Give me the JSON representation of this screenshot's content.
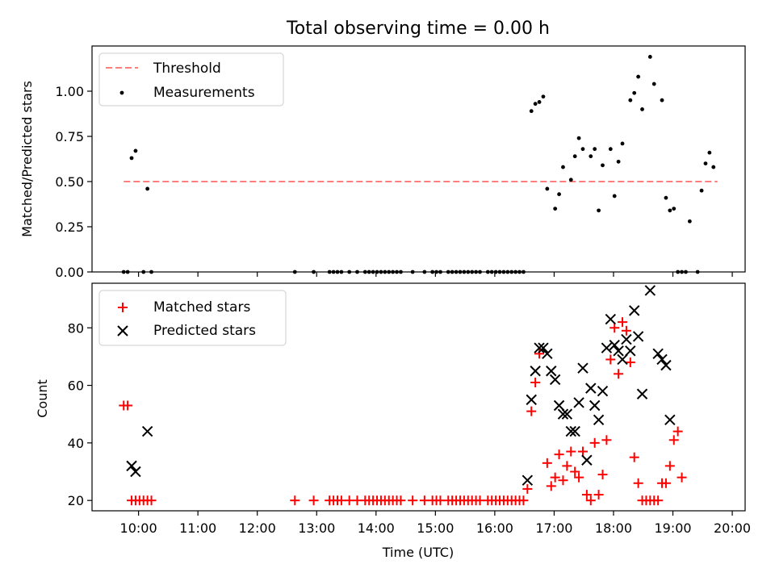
{
  "chart_data": [
    {
      "type": "scatter",
      "title": "Total observing time = 0.00 h",
      "xlabel": "",
      "ylabel": "Matched/Predicted stars",
      "ylim": [
        0,
        1.25
      ],
      "xlim": [
        "09:13",
        "20:13"
      ],
      "yticks": [
        {
          "v": 0,
          "label": "0.00"
        },
        {
          "v": 0.25,
          "label": "0.25"
        },
        {
          "v": 0.5,
          "label": "0.50"
        },
        {
          "v": 0.75,
          "label": "0.75"
        },
        {
          "v": 1.0,
          "label": "1.00"
        }
      ],
      "legend_position": "top-left",
      "threshold": {
        "name": "Threshold",
        "value": 0.5,
        "x_range": [
          "09:45",
          "19:45"
        ],
        "color": "#ff7f7f",
        "style": "dashed"
      },
      "series": [
        {
          "name": "Measurements",
          "marker": "dot",
          "color": "#000000",
          "points": [
            [
              "09:45",
              0
            ],
            [
              "09:49",
              0
            ],
            [
              "09:53",
              0.63
            ],
            [
              "09:57",
              0.67
            ],
            [
              "10:05",
              0
            ],
            [
              "10:09",
              0.46
            ],
            [
              "10:13",
              0
            ],
            [
              "12:38",
              0
            ],
            [
              "12:57",
              0
            ],
            [
              "13:13",
              0
            ],
            [
              "13:17",
              0
            ],
            [
              "13:21",
              0
            ],
            [
              "13:25",
              0
            ],
            [
              "13:33",
              0
            ],
            [
              "13:41",
              0
            ],
            [
              "13:49",
              0
            ],
            [
              "13:53",
              0
            ],
            [
              "13:57",
              0
            ],
            [
              "14:01",
              0
            ],
            [
              "14:05",
              0
            ],
            [
              "14:09",
              0
            ],
            [
              "14:13",
              0
            ],
            [
              "14:17",
              0
            ],
            [
              "14:21",
              0
            ],
            [
              "14:25",
              0
            ],
            [
              "14:37",
              0
            ],
            [
              "14:49",
              0
            ],
            [
              "14:57",
              0
            ],
            [
              "15:01",
              0
            ],
            [
              "15:05",
              0
            ],
            [
              "15:13",
              0
            ],
            [
              "15:17",
              0
            ],
            [
              "15:21",
              0
            ],
            [
              "15:25",
              0
            ],
            [
              "15:29",
              0
            ],
            [
              "15:33",
              0
            ],
            [
              "15:37",
              0
            ],
            [
              "15:41",
              0
            ],
            [
              "15:45",
              0
            ],
            [
              "15:53",
              0
            ],
            [
              "15:57",
              0
            ],
            [
              "16:01",
              0
            ],
            [
              "16:05",
              0
            ],
            [
              "16:09",
              0
            ],
            [
              "16:13",
              0
            ],
            [
              "16:17",
              0
            ],
            [
              "16:21",
              0
            ],
            [
              "16:25",
              0
            ],
            [
              "16:29",
              0
            ],
            [
              "16:37",
              0.89
            ],
            [
              "16:41",
              0.93
            ],
            [
              "16:45",
              0.94
            ],
            [
              "16:49",
              0.97
            ],
            [
              "16:53",
              0.46
            ],
            [
              "17:01",
              0.35
            ],
            [
              "17:05",
              0.43
            ],
            [
              "17:09",
              0.58
            ],
            [
              "17:17",
              0.51
            ],
            [
              "17:21",
              0.64
            ],
            [
              "17:25",
              0.74
            ],
            [
              "17:29",
              0.68
            ],
            [
              "17:37",
              0.64
            ],
            [
              "17:41",
              0.68
            ],
            [
              "17:45",
              0.34
            ],
            [
              "17:49",
              0.59
            ],
            [
              "17:57",
              0.68
            ],
            [
              "18:01",
              0.42
            ],
            [
              "18:05",
              0.61
            ],
            [
              "18:09",
              0.71
            ],
            [
              "18:17",
              0.95
            ],
            [
              "18:21",
              0.99
            ],
            [
              "18:25",
              1.08
            ],
            [
              "18:29",
              0.9
            ],
            [
              "18:37",
              1.19
            ],
            [
              "18:41",
              1.04
            ],
            [
              "18:49",
              0.95
            ],
            [
              "18:53",
              0.41
            ],
            [
              "18:57",
              0.34
            ],
            [
              "19:01",
              0.35
            ],
            [
              "19:05",
              0
            ],
            [
              "19:09",
              0
            ],
            [
              "19:13",
              0
            ],
            [
              "19:17",
              0.28
            ],
            [
              "19:25",
              0
            ],
            [
              "19:29",
              0.45
            ],
            [
              "19:33",
              0.6
            ],
            [
              "19:37",
              0.66
            ],
            [
              "19:41",
              0.58
            ]
          ]
        }
      ]
    },
    {
      "type": "scatter",
      "title": "",
      "xlabel": "Time (UTC)",
      "ylabel": "Count",
      "ylim": [
        16.4,
        95.5
      ],
      "xlim": [
        "09:13",
        "20:13"
      ],
      "xticks": [
        "10:00",
        "11:00",
        "12:00",
        "13:00",
        "14:00",
        "15:00",
        "16:00",
        "17:00",
        "18:00",
        "19:00",
        "20:00"
      ],
      "yticks": [
        {
          "v": 20,
          "label": "20"
        },
        {
          "v": 40,
          "label": "40"
        },
        {
          "v": 60,
          "label": "60"
        },
        {
          "v": 80,
          "label": "80"
        }
      ],
      "legend_position": "top-left",
      "series": [
        {
          "name": "Matched stars",
          "marker": "plus",
          "color": "#ff0000",
          "points": [
            [
              "09:45",
              53
            ],
            [
              "09:49",
              53
            ],
            [
              "09:53",
              20
            ],
            [
              "09:57",
              20
            ],
            [
              "10:01",
              20
            ],
            [
              "10:05",
              20
            ],
            [
              "10:09",
              20
            ],
            [
              "10:13",
              20
            ],
            [
              "12:38",
              20
            ],
            [
              "12:57",
              20
            ],
            [
              "13:13",
              20
            ],
            [
              "13:17",
              20
            ],
            [
              "13:21",
              20
            ],
            [
              "13:25",
              20
            ],
            [
              "13:33",
              20
            ],
            [
              "13:41",
              20
            ],
            [
              "13:49",
              20
            ],
            [
              "13:53",
              20
            ],
            [
              "13:57",
              20
            ],
            [
              "14:01",
              20
            ],
            [
              "14:05",
              20
            ],
            [
              "14:09",
              20
            ],
            [
              "14:13",
              20
            ],
            [
              "14:17",
              20
            ],
            [
              "14:21",
              20
            ],
            [
              "14:25",
              20
            ],
            [
              "14:37",
              20
            ],
            [
              "14:49",
              20
            ],
            [
              "14:57",
              20
            ],
            [
              "15:01",
              20
            ],
            [
              "15:05",
              20
            ],
            [
              "15:13",
              20
            ],
            [
              "15:17",
              20
            ],
            [
              "15:21",
              20
            ],
            [
              "15:25",
              20
            ],
            [
              "15:29",
              20
            ],
            [
              "15:33",
              20
            ],
            [
              "15:37",
              20
            ],
            [
              "15:41",
              20
            ],
            [
              "15:45",
              20
            ],
            [
              "15:53",
              20
            ],
            [
              "15:57",
              20
            ],
            [
              "16:01",
              20
            ],
            [
              "16:05",
              20
            ],
            [
              "16:09",
              20
            ],
            [
              "16:13",
              20
            ],
            [
              "16:17",
              20
            ],
            [
              "16:21",
              20
            ],
            [
              "16:25",
              20
            ],
            [
              "16:29",
              20
            ],
            [
              "16:33",
              24
            ],
            [
              "16:37",
              51
            ],
            [
              "16:41",
              61
            ],
            [
              "16:45",
              71
            ],
            [
              "16:53",
              33
            ],
            [
              "16:57",
              25
            ],
            [
              "17:01",
              28
            ],
            [
              "17:05",
              36
            ],
            [
              "17:09",
              27
            ],
            [
              "17:13",
              32
            ],
            [
              "17:17",
              37
            ],
            [
              "17:21",
              30
            ],
            [
              "17:25",
              28
            ],
            [
              "17:29",
              37
            ],
            [
              "17:33",
              22
            ],
            [
              "17:37",
              20
            ],
            [
              "17:41",
              40
            ],
            [
              "17:45",
              22
            ],
            [
              "17:49",
              29
            ],
            [
              "17:53",
              41
            ],
            [
              "17:57",
              69
            ],
            [
              "18:01",
              80
            ],
            [
              "18:05",
              64
            ],
            [
              "18:09",
              82
            ],
            [
              "18:13",
              79
            ],
            [
              "18:17",
              68
            ],
            [
              "18:21",
              35
            ],
            [
              "18:25",
              26
            ],
            [
              "18:29",
              20
            ],
            [
              "18:33",
              20
            ],
            [
              "18:37",
              20
            ],
            [
              "18:41",
              20
            ],
            [
              "18:45",
              20
            ],
            [
              "18:49",
              26
            ],
            [
              "18:53",
              26
            ],
            [
              "18:57",
              32
            ],
            [
              "19:01",
              41
            ],
            [
              "19:05",
              44
            ],
            [
              "19:09",
              28
            ]
          ]
        },
        {
          "name": "Predicted stars",
          "marker": "x",
          "color": "#000000",
          "points": [
            [
              "09:53",
              32
            ],
            [
              "09:57",
              30
            ],
            [
              "10:09",
              44
            ],
            [
              "16:33",
              27
            ],
            [
              "16:37",
              55
            ],
            [
              "16:41",
              65
            ],
            [
              "16:45",
              73
            ],
            [
              "16:49",
              73
            ],
            [
              "16:53",
              71
            ],
            [
              "16:57",
              65
            ],
            [
              "17:01",
              62
            ],
            [
              "17:05",
              53
            ],
            [
              "17:09",
              50
            ],
            [
              "17:13",
              50
            ],
            [
              "17:17",
              44
            ],
            [
              "17:21",
              44
            ],
            [
              "17:25",
              54
            ],
            [
              "17:29",
              66
            ],
            [
              "17:33",
              34
            ],
            [
              "17:37",
              59
            ],
            [
              "17:41",
              53
            ],
            [
              "17:45",
              48
            ],
            [
              "17:49",
              58
            ],
            [
              "17:53",
              73
            ],
            [
              "17:57",
              83
            ],
            [
              "18:01",
              74
            ],
            [
              "18:05",
              72
            ],
            [
              "18:09",
              69
            ],
            [
              "18:13",
              76
            ],
            [
              "18:17",
              72
            ],
            [
              "18:21",
              86
            ],
            [
              "18:25",
              77
            ],
            [
              "18:29",
              57
            ],
            [
              "18:37",
              93
            ],
            [
              "18:45",
              71
            ],
            [
              "18:49",
              69
            ],
            [
              "18:53",
              67
            ],
            [
              "18:57",
              48
            ]
          ]
        }
      ]
    }
  ]
}
